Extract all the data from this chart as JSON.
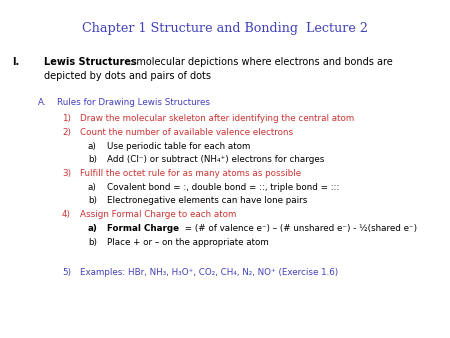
{
  "title": "Chapter 1 Structure and Bonding  Lecture 2",
  "title_color": "#4040BB",
  "bg_color": "#FFFFFF",
  "blue": "#4040BB",
  "red": "#CC3333",
  "black": "#000000",
  "figsize": [
    4.5,
    3.38
  ],
  "dpi": 100
}
